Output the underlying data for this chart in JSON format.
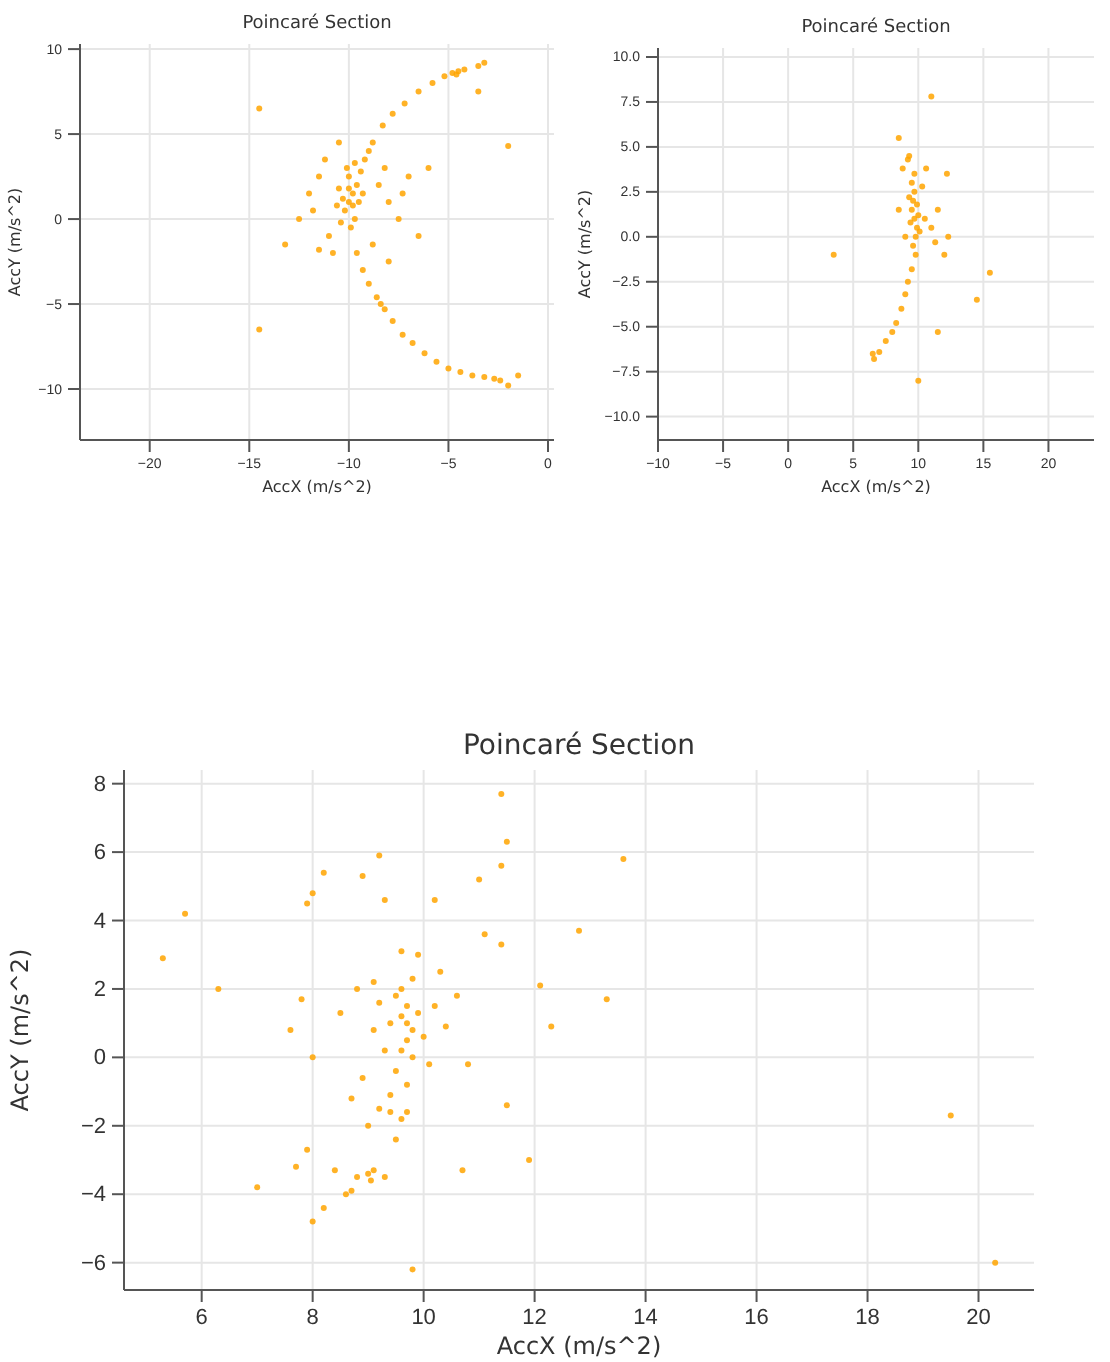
{
  "chart_data": [
    {
      "type": "scatter",
      "title": "Poincaré Section",
      "xlabel": "AccX (m/s^2)",
      "ylabel": "AccY (m/s^2)",
      "xlim": [
        -23.5,
        0.3
      ],
      "ylim": [
        -13,
        10.3
      ],
      "xticks": [
        -20,
        -15,
        -10,
        -5,
        0
      ],
      "yticks": [
        -10,
        -5,
        0,
        5,
        10
      ],
      "grid": true,
      "marker": "circle",
      "series": [
        {
          "color": "#ffa500",
          "x": [
            -10,
            -9.8,
            -10.2,
            -9.6,
            -10,
            -9.7,
            -10.3,
            -9.5,
            -9.9,
            -10.1,
            -10.5,
            -9.4,
            -10.4,
            -9.8,
            -10,
            -9.7,
            -10.6,
            -9.3,
            -11.5,
            -11.8,
            -12,
            -11,
            -11.2,
            -8.5,
            -8,
            -7.5,
            -8.8,
            -8.2,
            -10.8,
            -11.5,
            -7,
            -6.5,
            -9,
            -12.5,
            -10.5,
            -6,
            -8,
            -7.3,
            -9.2,
            -8.8,
            -8.3,
            -7.8,
            -7.2,
            -6.5,
            -5.8,
            -5.2,
            -4.8,
            -4.5,
            -4.2,
            -4.6,
            -3.5,
            -3.2,
            -9.6,
            -9.3,
            -9,
            -8.6,
            -8.4,
            -8.2,
            -7.8,
            -7.3,
            -6.8,
            -6.2,
            -5.6,
            -5,
            -4.4,
            -3.8,
            -3.2,
            -2.7,
            -2.4,
            -1.5,
            -2,
            -14.5,
            -13.2,
            -2,
            -14.5,
            -3.5
          ],
          "values": [
            1,
            1.5,
            0.5,
            2,
            2.5,
            0,
            1.2,
            1,
            -0.5,
            3,
            1.8,
            2.8,
            -0.2,
            0.8,
            1.8,
            3.3,
            0.8,
            1.5,
            2.5,
            0.5,
            1.5,
            -1,
            3.5,
            2,
            1,
            0,
            -1.5,
            3,
            -2,
            -1.8,
            2.5,
            -1,
            4,
            0,
            4.5,
            3,
            -2.5,
            1.5,
            3.5,
            4.5,
            5.5,
            6.2,
            6.8,
            7.5,
            8,
            8.4,
            8.6,
            8.7,
            8.8,
            8.5,
            9,
            9.2,
            -2,
            -3,
            -3.8,
            -4.6,
            -5,
            -5.3,
            -6,
            -6.8,
            -7.3,
            -7.9,
            -8.4,
            -8.8,
            -9,
            -9.2,
            -9.3,
            -9.4,
            -9.5,
            -9.2,
            -9.8,
            -6.5,
            -1.5,
            4.3,
            6.5,
            7.5
          ]
        }
      ]
    },
    {
      "type": "scatter",
      "title": "Poincaré Section",
      "xlabel": "AccX (m/s^2)",
      "ylabel": "AccY (m/s^2)",
      "xlim": [
        -10,
        23.5
      ],
      "ylim": [
        -11.3,
        10.5
      ],
      "xticks": [
        -10,
        -5,
        0,
        5,
        10,
        15,
        20
      ],
      "yticks": [
        {
          "value": -10,
          "label": "−10.0"
        },
        {
          "value": -7.5,
          "label": "−7.5"
        },
        {
          "value": -5,
          "label": "−5.0"
        },
        {
          "value": -2.5,
          "label": "−2.5"
        },
        {
          "value": 0,
          "label": "0.0"
        },
        {
          "value": 2.5,
          "label": "2.5"
        },
        {
          "value": 5,
          "label": "5.0"
        },
        {
          "value": 7.5,
          "label": "7.5"
        },
        {
          "value": 10,
          "label": "10.0"
        }
      ],
      "grid": true,
      "marker": "circle",
      "series": [
        {
          "color": "#ffa500",
          "x": [
            9.7,
            9.5,
            9.9,
            9.6,
            9.8,
            10,
            9.4,
            9.7,
            9.6,
            9.9,
            9.3,
            10.1,
            9.8,
            9.5,
            9.7,
            9.2,
            8.8,
            10.3,
            10.5,
            9,
            11,
            11.5,
            12.3,
            11.3,
            8.5,
            10.6,
            9.3,
            12.2,
            9.5,
            9.2,
            9,
            8.7,
            8.3,
            8,
            7.5,
            7,
            6.6,
            6.5,
            11,
            15.5,
            3.5,
            11.5,
            12,
            14.5,
            10,
            8.5
          ],
          "values": [
            1,
            1.5,
            0.5,
            2,
            0,
            1.2,
            0.8,
            2.5,
            -0.5,
            1.8,
            2.2,
            0.3,
            -1,
            3,
            3.5,
            4.3,
            3.8,
            2.8,
            1,
            0,
            0.5,
            1.5,
            0,
            -0.3,
            1.5,
            3.8,
            4.5,
            3.5,
            -1.8,
            -2.5,
            -3.2,
            -4,
            -4.8,
            -5.3,
            -5.8,
            -6.4,
            -6.8,
            -6.5,
            7.8,
            -2,
            -1,
            -5.3,
            -1,
            -3.5,
            -8,
            5.5
          ]
        }
      ]
    },
    {
      "type": "scatter",
      "title": "Poincaré Section",
      "xlabel": "AccX (m/s^2)",
      "ylabel": "AccY (m/s^2)",
      "xlim": [
        4.6,
        21
      ],
      "ylim": [
        -6.8,
        8.4
      ],
      "xticks": [
        6,
        8,
        10,
        12,
        14,
        16,
        18,
        20
      ],
      "yticks": [
        -6,
        -4,
        -2,
        0,
        2,
        4,
        6,
        8
      ],
      "grid": true,
      "marker": "circle",
      "series": [
        {
          "color": "#ffa500",
          "x": [
            9.7,
            9.6,
            9.8,
            9.7,
            9.6,
            9.8,
            9.5,
            9.9,
            9.7,
            9.4,
            10,
            9.6,
            9.8,
            9.3,
            10.2,
            10.1,
            9.5,
            9.2,
            9.1,
            9.6,
            9.9,
            10.3,
            10.4,
            9.1,
            8.8,
            9.7,
            9.4,
            8.5,
            10.6,
            10.8,
            8.9,
            9.4,
            9.6,
            9.2,
            9.7,
            9,
            9.5,
            8.7,
            9.1,
            9,
            8.8,
            9.05,
            8.6,
            8.7,
            8,
            8.2,
            9.3,
            8.4,
            5.3,
            5.7,
            6.3,
            7.6,
            7.8,
            8,
            8.2,
            7.9,
            8.9,
            9.2,
            9.3,
            10.2,
            11,
            11.4,
            11.4,
            11.5,
            13.6,
            12.8,
            13.3,
            12.1,
            11.4,
            19.5,
            20.3,
            9.8,
            7,
            7.7,
            10.7,
            11.9,
            11.5,
            12.3,
            11.1,
            8,
            7.9
          ],
          "values": [
            1,
            1.2,
            0.8,
            1.5,
            0.2,
            0,
            1.8,
            1.3,
            0.5,
            1,
            0.6,
            2,
            2.3,
            0.2,
            1.5,
            -0.2,
            -0.4,
            1.6,
            0.8,
            3.1,
            3,
            2.5,
            0.9,
            2.2,
            2,
            -0.8,
            -1.1,
            1.3,
            1.8,
            -0.2,
            -0.6,
            -1.6,
            -1.8,
            -1.5,
            -1.6,
            -2,
            -2.4,
            -1.2,
            -3.3,
            -3.4,
            -3.5,
            -3.6,
            -4,
            -3.9,
            -4.8,
            -4.4,
            -3.5,
            -3.3,
            2.9,
            4.2,
            2,
            0.8,
            1.7,
            4.8,
            5.4,
            4.5,
            5.3,
            5.9,
            4.6,
            4.6,
            5.2,
            5.6,
            7.7,
            6.3,
            5.8,
            3.7,
            1.7,
            2.1,
            3.3,
            -1.7,
            -6,
            -6.2,
            -3.8,
            -3.2,
            -3.3,
            -3,
            -1.4,
            0.9,
            3.6,
            0,
            -2.7
          ]
        }
      ]
    }
  ]
}
